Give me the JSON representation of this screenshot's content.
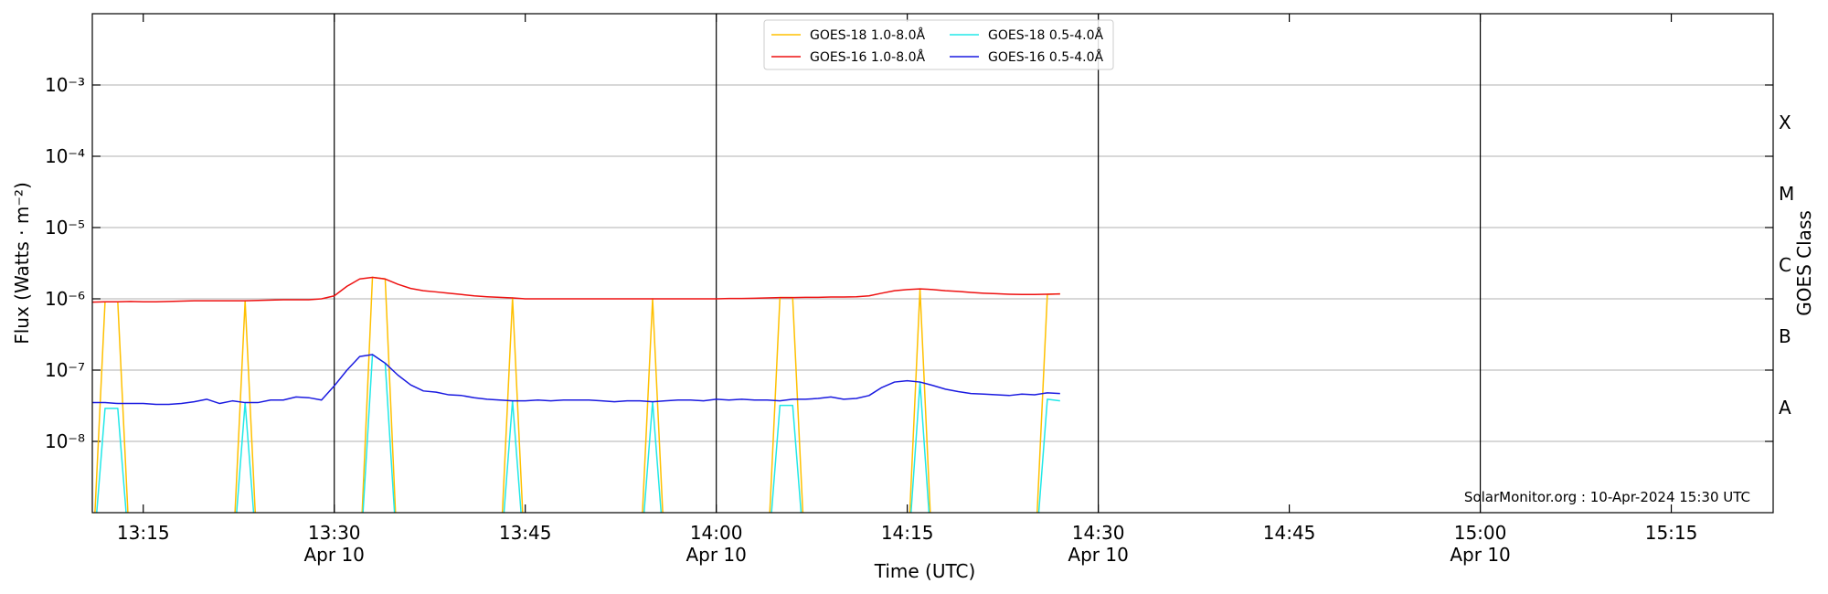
{
  "chart_data": {
    "type": "line",
    "ylabel": "Flux (Watts · m⁻²)",
    "xlabel": "Time (UTC)",
    "y2label": "GOES Class",
    "annotation": "SolarMonitor.org : 10-Apr-2024 15:30 UTC",
    "log_y": true,
    "grid": true,
    "legend": "upper center",
    "xlim": [
      "13:11",
      "15:23"
    ],
    "xticks": [
      "13:15",
      "13:30",
      "13:45",
      "14:00",
      "14:15",
      "14:30",
      "14:45",
      "15:00",
      "15:15"
    ],
    "xtick_dates": [
      null,
      "Apr 10",
      null,
      "Apr 10",
      null,
      "Apr 10",
      null,
      "Apr 10",
      null
    ],
    "ylim": [
      1e-09,
      0.01
    ],
    "yticks": [
      {
        "value": 1e-08,
        "label": "10⁻⁸"
      },
      {
        "value": 1e-07,
        "label": "10⁻⁷"
      },
      {
        "value": 1e-06,
        "label": "10⁻⁶"
      },
      {
        "value": 1e-05,
        "label": "10⁻⁵"
      },
      {
        "value": 0.0001,
        "label": "10⁻⁴"
      },
      {
        "value": 0.001,
        "label": "10⁻³"
      }
    ],
    "y2lim": [
      1e-09,
      0.01
    ],
    "y2ticks": [
      {
        "value": 3e-08,
        "label": "A"
      },
      {
        "value": 3e-07,
        "label": "B"
      },
      {
        "value": 3e-06,
        "label": "C"
      },
      {
        "value": 3e-05,
        "label": "M"
      },
      {
        "value": 0.0003,
        "label": "X"
      }
    ],
    "x": [
      "13:11",
      "13:12",
      "13:13",
      "13:14",
      "13:15",
      "13:16",
      "13:17",
      "13:18",
      "13:19",
      "13:20",
      "13:21",
      "13:22",
      "13:23",
      "13:24",
      "13:25",
      "13:26",
      "13:27",
      "13:28",
      "13:29",
      "13:30",
      "13:31",
      "13:32",
      "13:33",
      "13:34",
      "13:35",
      "13:36",
      "13:37",
      "13:38",
      "13:39",
      "13:40",
      "13:41",
      "13:42",
      "13:43",
      "13:44",
      "13:45",
      "13:46",
      "13:47",
      "13:48",
      "13:49",
      "13:50",
      "13:51",
      "13:52",
      "13:53",
      "13:54",
      "13:55",
      "13:56",
      "13:57",
      "13:58",
      "13:59",
      "14:00",
      "14:01",
      "14:02",
      "14:03",
      "14:04",
      "14:05",
      "14:06",
      "14:07",
      "14:08",
      "14:09",
      "14:10",
      "14:11",
      "14:12",
      "14:13",
      "14:14",
      "14:15",
      "14:16",
      "14:17",
      "14:18",
      "14:19",
      "14:20",
      "14:21",
      "14:22",
      "14:23",
      "14:24",
      "14:25",
      "14:26",
      "14:27"
    ],
    "series": [
      {
        "name": "GOES-18 1.0-8.0Å",
        "color": "#ffc000",
        "values": [
          0,
          9.1e-07,
          9.1e-07,
          0,
          0,
          0,
          0,
          0,
          0,
          0,
          0,
          0,
          9.4e-07,
          0,
          0,
          0,
          0,
          0,
          0,
          0,
          0,
          0,
          2e-06,
          1.9e-06,
          0,
          0,
          0,
          0,
          0,
          0,
          0,
          0,
          0,
          1.03e-06,
          0,
          0,
          0,
          0,
          0,
          0,
          0,
          0,
          0,
          0,
          1e-06,
          0,
          0,
          0,
          0,
          0,
          0,
          0,
          0,
          0,
          1.04e-06,
          1.04e-06,
          0,
          0,
          0,
          0,
          0,
          0,
          0,
          0,
          0,
          1.38e-06,
          0,
          0,
          0,
          0,
          0,
          0,
          0,
          0,
          0,
          1.16e-06,
          1.17e-06
        ]
      },
      {
        "name": "GOES-16 1.0-8.0Å",
        "color": "#ee1111",
        "values": [
          9e-07,
          9.1e-07,
          9.1e-07,
          9.2e-07,
          9.1e-07,
          9.1e-07,
          9.2e-07,
          9.3e-07,
          9.4e-07,
          9.4e-07,
          9.4e-07,
          9.4e-07,
          9.4e-07,
          9.5e-07,
          9.6e-07,
          9.7e-07,
          9.7e-07,
          9.7e-07,
          1e-06,
          1.1e-06,
          1.5e-06,
          1.9e-06,
          2e-06,
          1.9e-06,
          1.6e-06,
          1.4e-06,
          1.3e-06,
          1.25e-06,
          1.2e-06,
          1.15e-06,
          1.1e-06,
          1.07e-06,
          1.05e-06,
          1.03e-06,
          1e-06,
          1e-06,
          1e-06,
          1e-06,
          1e-06,
          1e-06,
          1e-06,
          1e-06,
          1e-06,
          1e-06,
          1e-06,
          1e-06,
          1e-06,
          1e-06,
          1e-06,
          1e-06,
          1.01e-06,
          1.01e-06,
          1.02e-06,
          1.03e-06,
          1.04e-06,
          1.04e-06,
          1.05e-06,
          1.05e-06,
          1.06e-06,
          1.06e-06,
          1.07e-06,
          1.1e-06,
          1.2e-06,
          1.3e-06,
          1.35e-06,
          1.38e-06,
          1.35e-06,
          1.3e-06,
          1.27e-06,
          1.23e-06,
          1.2e-06,
          1.18e-06,
          1.16e-06,
          1.15e-06,
          1.15e-06,
          1.16e-06,
          1.17e-06
        ]
      },
      {
        "name": "GOES-18 0.5-4.0Å",
        "color": "#22e8e8",
        "values": [
          0,
          2.9e-08,
          2.9e-08,
          0,
          0,
          0,
          0,
          0,
          0,
          0,
          0,
          0,
          3.5e-08,
          0,
          0,
          0,
          0,
          0,
          0,
          0,
          0,
          0,
          1.65e-07,
          1.25e-07,
          0,
          0,
          0,
          0,
          0,
          0,
          0,
          0,
          0,
          3.7e-08,
          0,
          0,
          0,
          0,
          0,
          0,
          0,
          0,
          0,
          0,
          3.6e-08,
          0,
          0,
          0,
          0,
          0,
          0,
          0,
          0,
          0,
          3.2e-08,
          3.2e-08,
          0,
          0,
          0,
          0,
          0,
          0,
          0,
          0,
          0,
          6.8e-08,
          0,
          0,
          0,
          0,
          0,
          0,
          0,
          0,
          0,
          3.9e-08,
          3.7e-08
        ]
      },
      {
        "name": "GOES-16 0.5-4.0Å",
        "color": "#1a1ae0",
        "values": [
          3.5e-08,
          3.5e-08,
          3.4e-08,
          3.4e-08,
          3.4e-08,
          3.3e-08,
          3.3e-08,
          3.4e-08,
          3.6e-08,
          3.9e-08,
          3.4e-08,
          3.7e-08,
          3.5e-08,
          3.5e-08,
          3.8e-08,
          3.8e-08,
          4.2e-08,
          4.1e-08,
          3.8e-08,
          6e-08,
          1e-07,
          1.55e-07,
          1.65e-07,
          1.25e-07,
          8.5e-08,
          6.2e-08,
          5.1e-08,
          4.9e-08,
          4.5e-08,
          4.4e-08,
          4.1e-08,
          3.9e-08,
          3.8e-08,
          3.7e-08,
          3.7e-08,
          3.8e-08,
          3.7e-08,
          3.8e-08,
          3.8e-08,
          3.8e-08,
          3.7e-08,
          3.6e-08,
          3.7e-08,
          3.7e-08,
          3.6e-08,
          3.7e-08,
          3.8e-08,
          3.8e-08,
          3.7e-08,
          3.9e-08,
          3.8e-08,
          3.9e-08,
          3.8e-08,
          3.8e-08,
          3.7e-08,
          3.9e-08,
          3.9e-08,
          4e-08,
          4.2e-08,
          3.9e-08,
          4e-08,
          4.4e-08,
          5.7e-08,
          6.8e-08,
          7.1e-08,
          6.8e-08,
          6.1e-08,
          5.4e-08,
          5e-08,
          4.7e-08,
          4.6e-08,
          4.5e-08,
          4.4e-08,
          4.6e-08,
          4.5e-08,
          4.8e-08,
          4.7e-08
        ]
      }
    ]
  }
}
